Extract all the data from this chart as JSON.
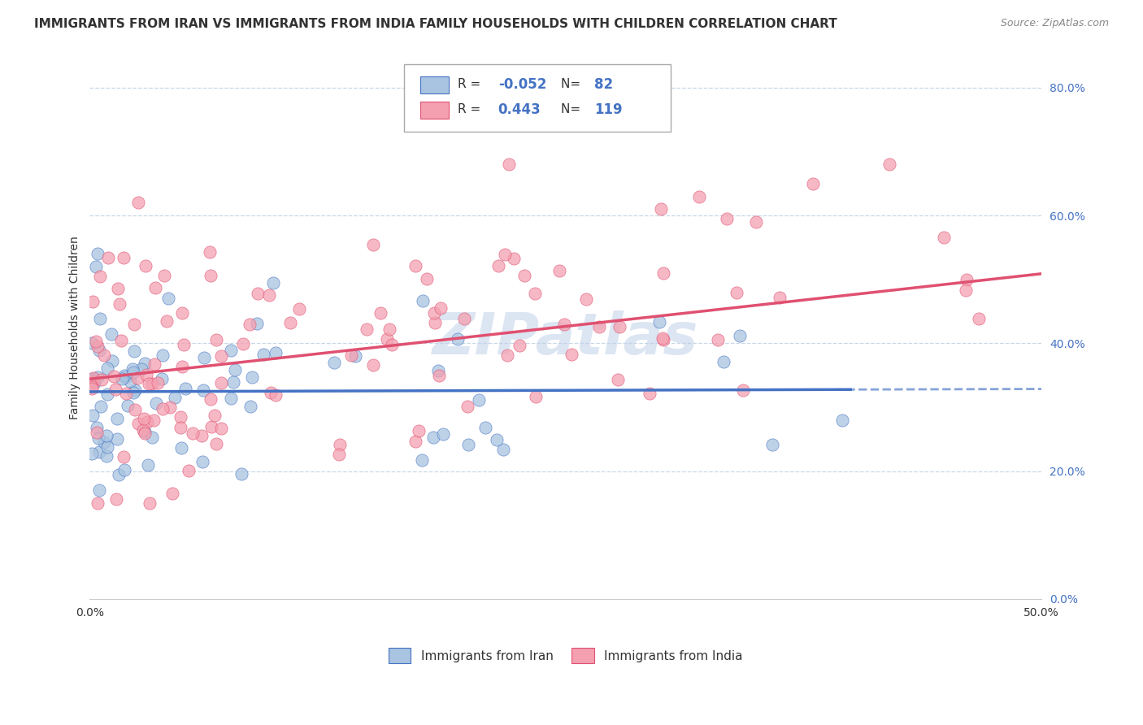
{
  "title": "IMMIGRANTS FROM IRAN VS IMMIGRANTS FROM INDIA FAMILY HOUSEHOLDS WITH CHILDREN CORRELATION CHART",
  "source": "Source: ZipAtlas.com",
  "ylabel": "Family Households with Children",
  "xlabel_iran": "Immigrants from Iran",
  "xlabel_india": "Immigrants from India",
  "xmin": 0.0,
  "xmax": 0.5,
  "ymin": 0.0,
  "ymax": 0.85,
  "yticks": [
    0.0,
    0.2,
    0.4,
    0.6,
    0.8
  ],
  "iran_R": -0.052,
  "iran_N": 82,
  "india_R": 0.443,
  "india_N": 119,
  "iran_color": "#a8c4e0",
  "india_color": "#f4a0b0",
  "iran_line_color": "#4472c4",
  "india_line_color": "#e05070",
  "background_color": "#ffffff",
  "grid_color": "#c8d8e8",
  "watermark_color": "#c0d0e8",
  "title_fontsize": 11,
  "axis_label_fontsize": 10,
  "tick_fontsize": 10,
  "legend_fontsize": 11,
  "source_fontsize": 9
}
